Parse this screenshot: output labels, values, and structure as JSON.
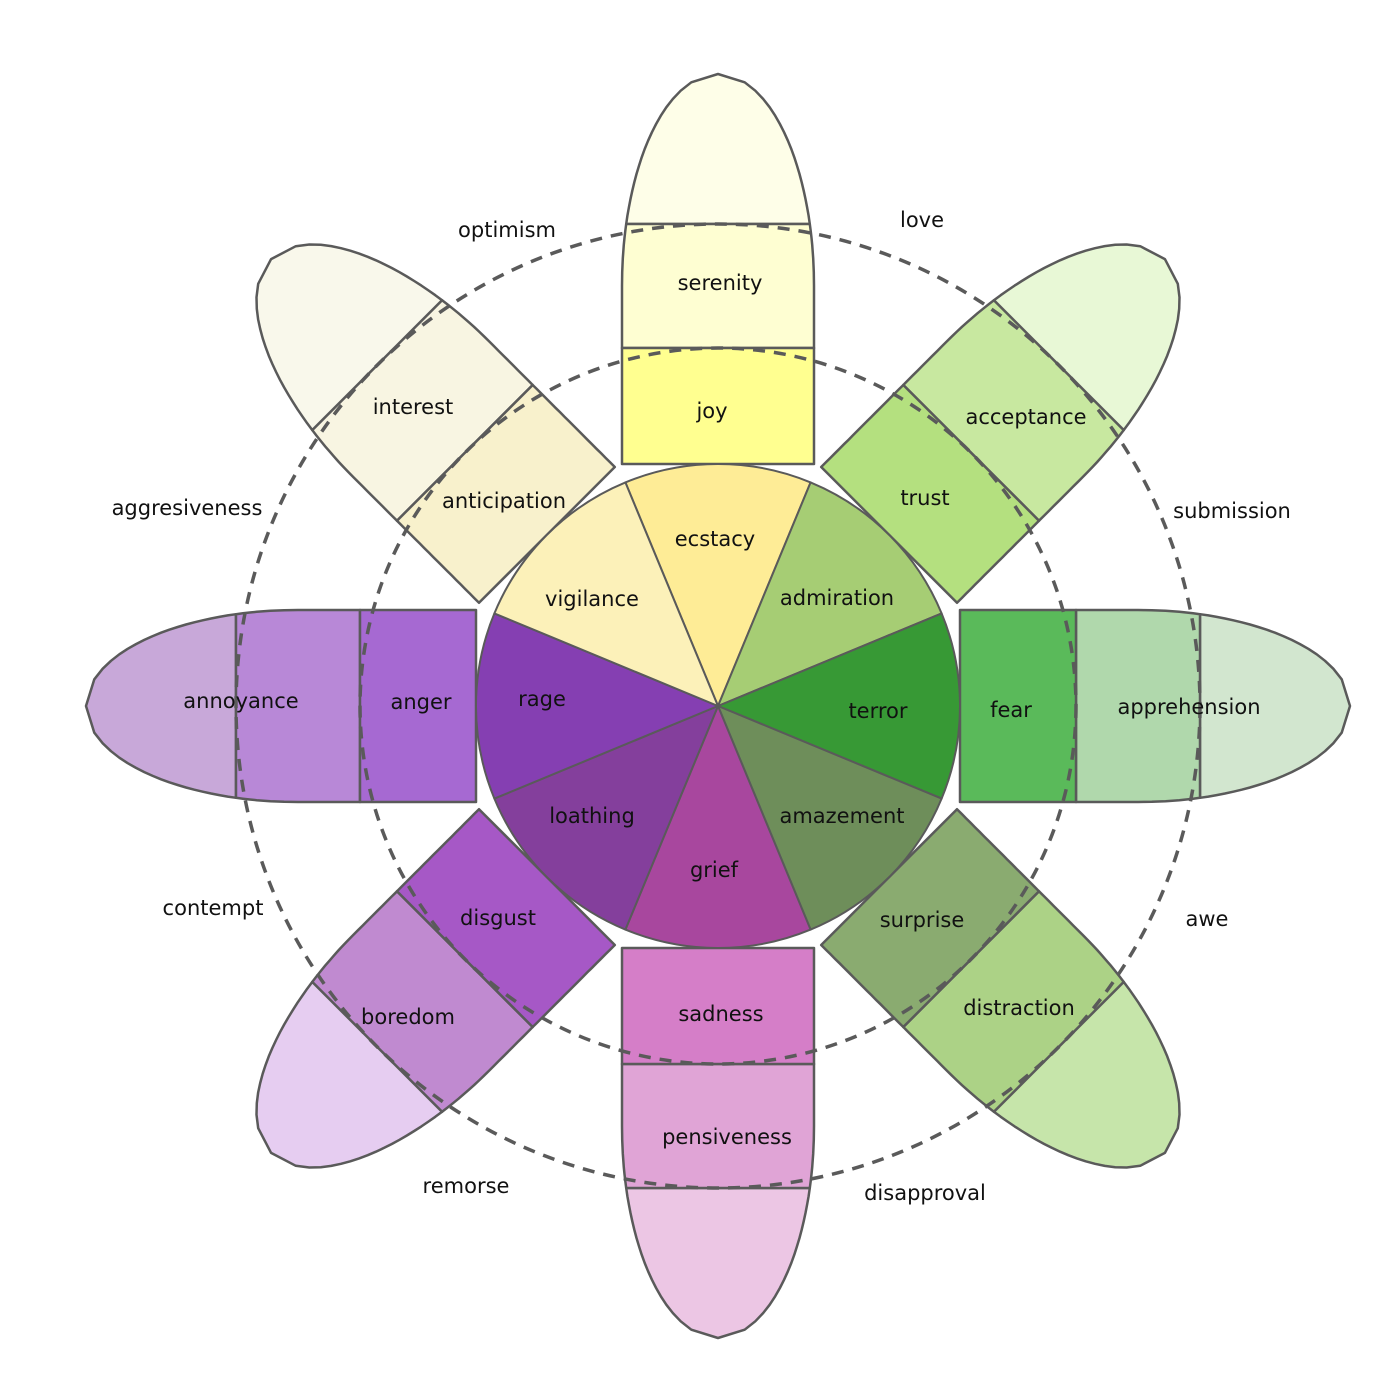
{
  "petals": [
    {
      "id": "joy",
      "outer_color": "#fefee8",
      "colors": [
        "#fefed2",
        "#ffff90",
        "#feec96"
      ],
      "labels": [
        "serenity",
        "joy",
        "ecstacy"
      ]
    },
    {
      "id": "trust",
      "outer_color": "#e8f8d6",
      "colors": [
        "#c8e8a0",
        "#b4e07f",
        "#a6cd74"
      ],
      "labels": [
        "acceptance",
        "trust",
        "admiration"
      ]
    },
    {
      "id": "fear",
      "outer_color": "#d2e6cf",
      "colors": [
        "#b0d8ac",
        "#5aba5a",
        "#379935"
      ],
      "labels": [
        "apprehension",
        "fear",
        "terror"
      ]
    },
    {
      "id": "surprise",
      "outer_color": "#c6e5aa",
      "colors": [
        "#acd286",
        "#8aab70",
        "#6e8e5a"
      ],
      "labels": [
        "distraction",
        "surprise",
        "amazement"
      ]
    },
    {
      "id": "sadness",
      "outer_color": "#ecc6e4",
      "colors": [
        "#e0a4d6",
        "#d57ec8",
        "#a8479e"
      ],
      "labels": [
        "pensiveness",
        "sadness",
        "grief"
      ]
    },
    {
      "id": "disgust",
      "outer_color": "#e6cdf1",
      "colors": [
        "#c08ad0",
        "#a658c6",
        "#843f9c"
      ],
      "labels": [
        "boredom",
        "disgust",
        "loathing"
      ]
    },
    {
      "id": "anger",
      "outer_color": "#c8a8d9",
      "colors": [
        "#b888d7",
        "#a669d2",
        "#853fb2"
      ],
      "labels": [
        "annoyance",
        "anger",
        "rage"
      ]
    },
    {
      "id": "anticipation",
      "outer_color": "#f9f8eb",
      "colors": [
        "#f8f5e2",
        "#f8f1cc",
        "#fcf1b9"
      ],
      "labels": [
        "interest",
        "anticipation",
        "vigilance"
      ]
    }
  ],
  "dyads": [
    "love",
    "submission",
    "awe",
    "disapproval",
    "remorse",
    "contempt",
    "aggresiveness",
    "optimism"
  ]
}
